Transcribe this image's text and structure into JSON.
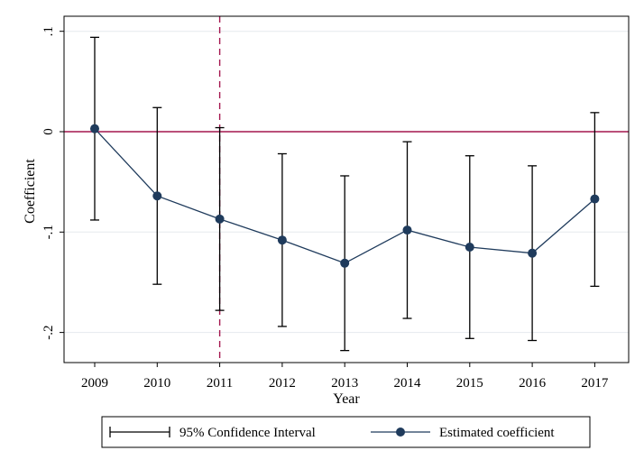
{
  "chart_data": {
    "type": "line",
    "title": "",
    "xlabel": "Year",
    "ylabel": "Coefficient",
    "x": [
      "2009",
      "2010",
      "2011",
      "2012",
      "2013",
      "2014",
      "2015",
      "2016",
      "2017"
    ],
    "series": [
      {
        "name": "Estimated coefficient",
        "values": [
          0.003,
          -0.064,
          -0.087,
          -0.108,
          -0.131,
          -0.098,
          -0.115,
          -0.121,
          -0.067
        ]
      }
    ],
    "ci": {
      "name": "95% Confidence Interval",
      "lower": [
        -0.088,
        -0.152,
        -0.178,
        -0.194,
        -0.218,
        -0.186,
        -0.206,
        -0.208,
        -0.154
      ],
      "upper": [
        0.094,
        0.024,
        0.004,
        -0.022,
        -0.044,
        -0.01,
        -0.024,
        -0.034,
        0.019
      ]
    },
    "ylim": [
      -0.23,
      0.115
    ],
    "yticks": [
      {
        "value": 0.1,
        "label": ".1"
      },
      {
        "value": 0,
        "label": "0"
      },
      {
        "value": -0.1,
        "label": "-.1"
      },
      {
        "value": -0.2,
        "label": "-.2"
      }
    ],
    "reference_lines": {
      "horizontal_y": 0,
      "vertical_x": "2011",
      "color": "#a4174f"
    },
    "colors": {
      "series": "#1f3b5c",
      "ci": "#000000",
      "grid": "#e6eaee"
    },
    "grid": true,
    "legend_placement": "bottom"
  }
}
